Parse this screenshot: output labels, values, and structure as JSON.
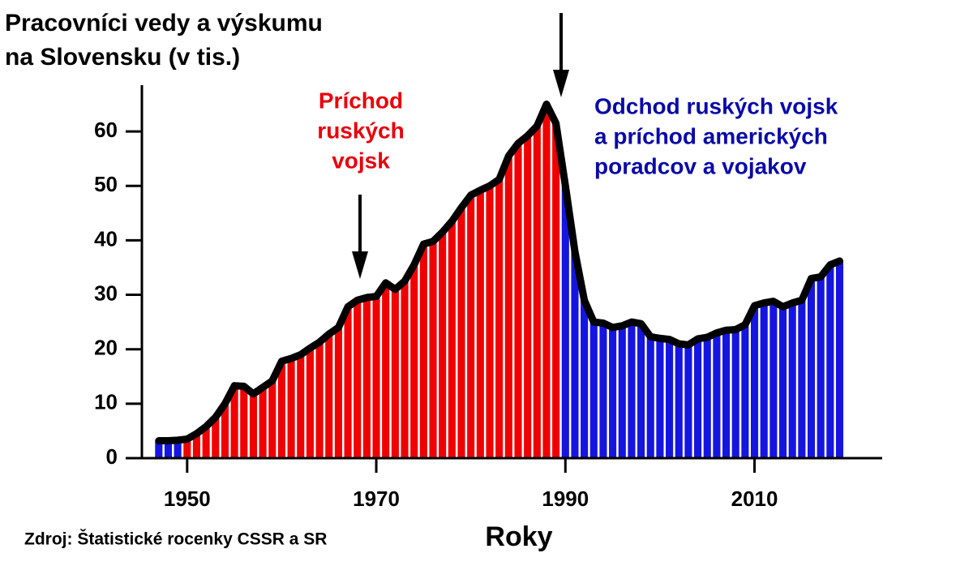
{
  "chart_data": {
    "type": "bar",
    "title": [
      "Pracovníci vedy a výskumu",
      "na Slovensku (v tis.)"
    ],
    "x_label": "Roky",
    "source": "Zdroj: Štatistické rocenky CSSR a SR",
    "annotations": [
      {
        "lines": [
          "Príchod",
          "ruských",
          "vojsk"
        ],
        "color": "#e8000b"
      },
      {
        "lines": [
          "Odchod ruských vojsk",
          "a príchod amerických",
          "poradcov a vojakov"
        ],
        "color": "#0a0aa8"
      }
    ],
    "x": [
      1947,
      1948,
      1949,
      1950,
      1951,
      1952,
      1953,
      1954,
      1955,
      1956,
      1957,
      1958,
      1959,
      1960,
      1961,
      1962,
      1963,
      1964,
      1965,
      1966,
      1967,
      1968,
      1969,
      1970,
      1971,
      1972,
      1973,
      1974,
      1975,
      1976,
      1977,
      1978,
      1979,
      1980,
      1981,
      1982,
      1983,
      1984,
      1985,
      1986,
      1987,
      1988,
      1989,
      1990,
      1991,
      1992,
      1993,
      1994,
      1995,
      1996,
      1997,
      1998,
      1999,
      2000,
      2001,
      2002,
      2003,
      2004,
      2005,
      2006,
      2007,
      2008,
      2009,
      2010,
      2011,
      2012,
      2013,
      2014,
      2015,
      2016,
      2017,
      2018,
      2019
    ],
    "values": [
      3.2,
      3.2,
      3.3,
      3.5,
      4.5,
      5.8,
      7.5,
      10,
      13.3,
      13.2,
      11.8,
      13,
      14.2,
      17.8,
      18.3,
      19,
      20.2,
      21.3,
      22.8,
      24,
      27.8,
      29,
      29.5,
      29.7,
      32.2,
      31,
      32.5,
      35.5,
      39.3,
      39.8,
      41.5,
      43.5,
      46,
      48.3,
      49.2,
      50,
      51.2,
      55.5,
      57.8,
      59.2,
      61,
      65,
      61.5,
      50,
      38,
      29,
      25,
      24.8,
      24,
      24.3,
      25,
      24.7,
      22.3,
      22,
      21.8,
      21,
      20.8,
      21.9,
      22.2,
      23,
      23.5,
      23.6,
      24.5,
      28,
      28.5,
      28.8,
      27.8,
      28.5,
      29,
      33,
      33.3,
      35.5,
      36.2
    ],
    "bar_colors": [
      "#1515e0",
      "#1515e0",
      "#1515e0",
      "#f00000",
      "#f00000",
      "#f00000",
      "#f00000",
      "#f00000",
      "#f00000",
      "#f00000",
      "#f00000",
      "#f00000",
      "#f00000",
      "#f00000",
      "#f00000",
      "#f00000",
      "#f00000",
      "#f00000",
      "#f00000",
      "#f00000",
      "#f00000",
      "#f00000",
      "#f00000",
      "#f00000",
      "#f00000",
      "#f00000",
      "#f00000",
      "#f00000",
      "#f00000",
      "#f00000",
      "#f00000",
      "#f00000",
      "#f00000",
      "#f00000",
      "#f00000",
      "#f00000",
      "#f00000",
      "#f00000",
      "#f00000",
      "#f00000",
      "#f00000",
      "#f00000",
      "#f00000",
      "#1515e0",
      "#1515e0",
      "#1515e0",
      "#1515e0",
      "#1515e0",
      "#1515e0",
      "#1515e0",
      "#1515e0",
      "#1515e0",
      "#1515e0",
      "#1515e0",
      "#1515e0",
      "#1515e0",
      "#1515e0",
      "#1515e0",
      "#1515e0",
      "#1515e0",
      "#1515e0",
      "#1515e0",
      "#1515e0",
      "#1515e0",
      "#1515e0",
      "#1515e0",
      "#1515e0",
      "#1515e0",
      "#1515e0",
      "#1515e0",
      "#1515e0",
      "#1515e0",
      "#1515e0"
    ],
    "line_color": "#000000",
    "xlim": [
      1943.5,
      2023.5
    ],
    "xticks": [
      1950,
      1970,
      1990,
      2010
    ],
    "ylim": [
      0,
      68.5
    ],
    "yticks": [
      0,
      10,
      20,
      30,
      40,
      50,
      60
    ]
  }
}
